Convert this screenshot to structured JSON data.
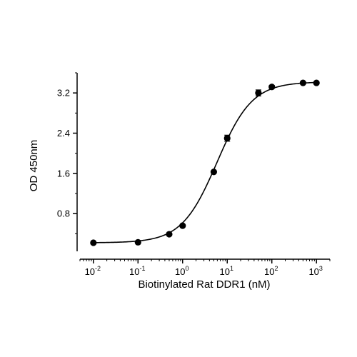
{
  "chart_data": {
    "type": "scatter",
    "xlabel": "Biotinylated Rat DDR1 (nM)",
    "ylabel": "OD 450nm",
    "x_scale": "log",
    "xlim": [
      0.005,
      2000
    ],
    "ylim": [
      0.05,
      3.6
    ],
    "x_ticks": [
      {
        "value": 0.01,
        "base": "10",
        "exp": "-2"
      },
      {
        "value": 0.1,
        "base": "10",
        "exp": "-1"
      },
      {
        "value": 1,
        "base": "10",
        "exp": "0"
      },
      {
        "value": 10,
        "base": "10",
        "exp": "1"
      },
      {
        "value": 100,
        "base": "10",
        "exp": "2"
      },
      {
        "value": 1000,
        "base": "10",
        "exp": "3"
      }
    ],
    "y_ticks": [
      {
        "value": 0.8,
        "label": "0.8"
      },
      {
        "value": 1.6,
        "label": "1.6"
      },
      {
        "value": 2.4,
        "label": "2.4"
      },
      {
        "value": 3.2,
        "label": "3.2"
      }
    ],
    "grid": false,
    "fit_curve": {
      "bottom": 0.22,
      "top": 3.42,
      "ec50": 5.9,
      "hill": 1.1
    },
    "points": [
      {
        "x": 0.01,
        "y": 0.22,
        "err": 0.0
      },
      {
        "x": 0.1,
        "y": 0.23,
        "err": 0.0
      },
      {
        "x": 0.5,
        "y": 0.39,
        "err": 0.0
      },
      {
        "x": 1,
        "y": 0.56,
        "err": 0.0
      },
      {
        "x": 5,
        "y": 1.63,
        "err": 0.0
      },
      {
        "x": 10,
        "y": 2.3,
        "err": 0.06
      },
      {
        "x": 50,
        "y": 3.2,
        "err": 0.06
      },
      {
        "x": 100,
        "y": 3.32,
        "err": 0.03
      },
      {
        "x": 500,
        "y": 3.4,
        "err": 0.0
      },
      {
        "x": 1000,
        "y": 3.4,
        "err": 0.0
      }
    ],
    "colors": {
      "marker": "#000000",
      "line": "#000000",
      "axis": "#000000"
    }
  }
}
